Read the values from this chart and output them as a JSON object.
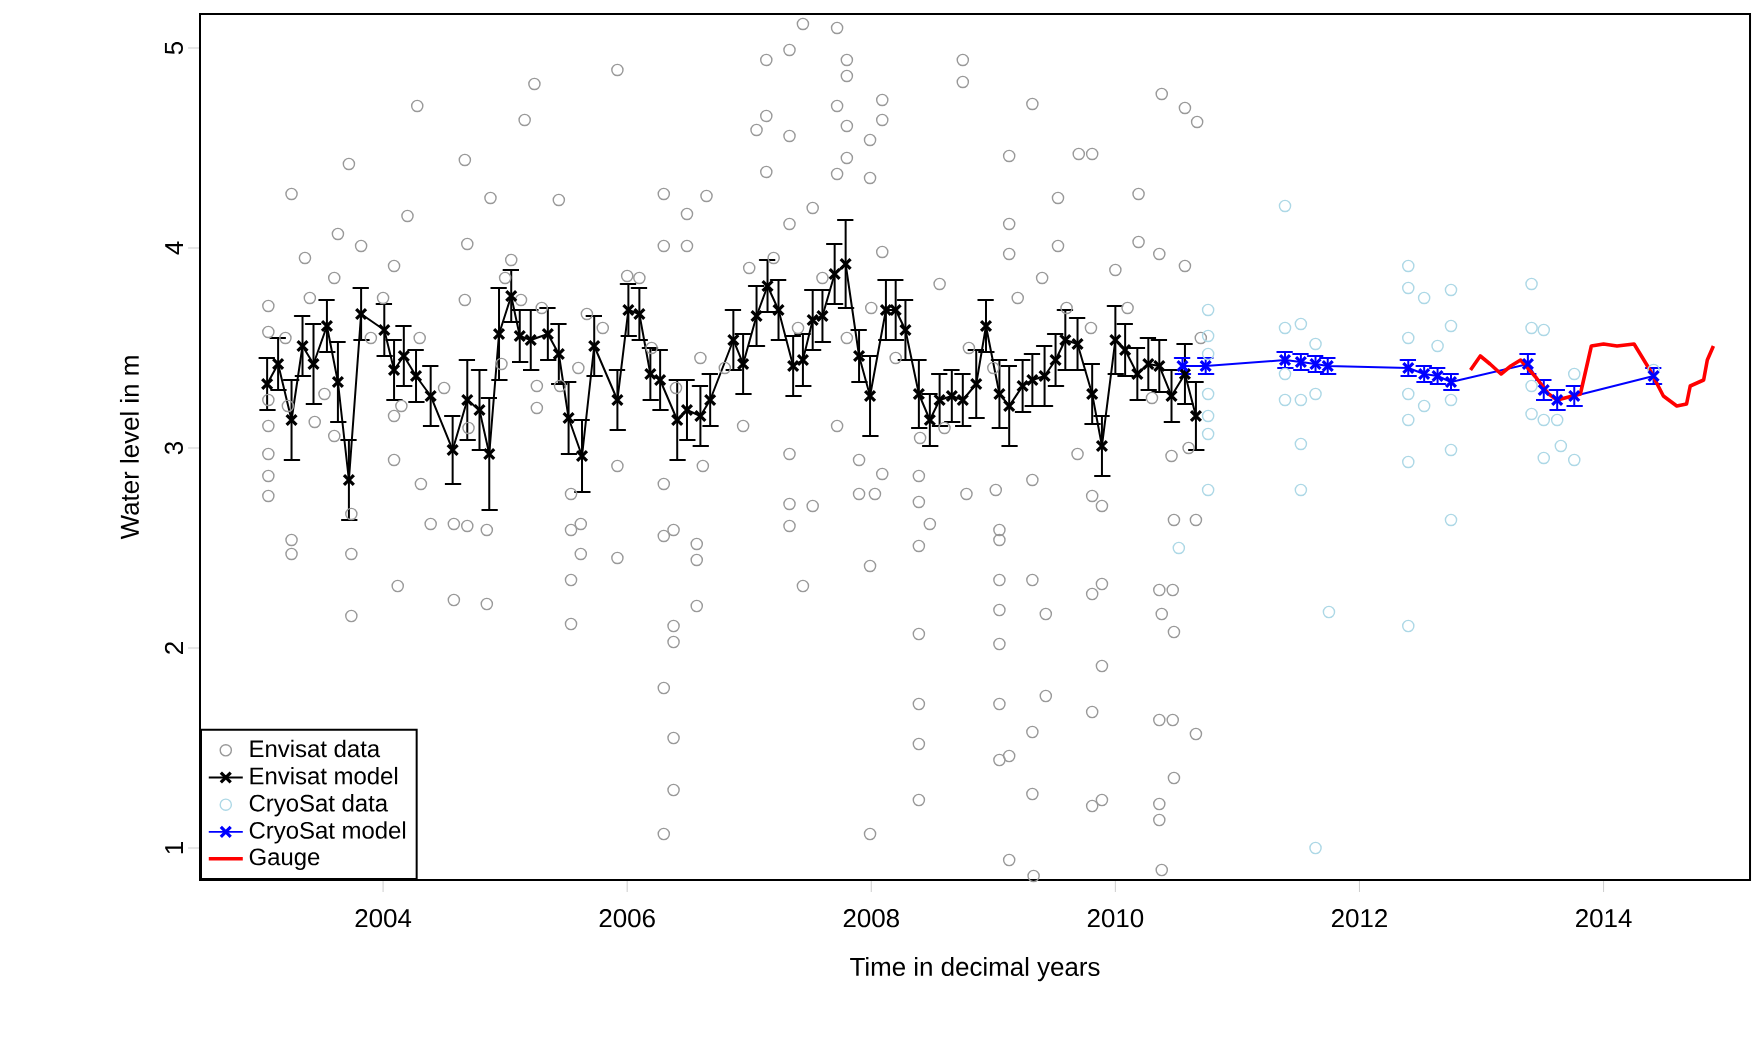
{
  "chart_data": {
    "type": "line",
    "xlabel": "Time in decimal years",
    "ylabel": "Water level in m",
    "xlim": [
      2002.5,
      2015.2
    ],
    "ylim": [
      0.84,
      5.17
    ],
    "xticks": [
      2004,
      2006,
      2008,
      2010,
      2012,
      2014
    ],
    "yticks": [
      1,
      2,
      3,
      4,
      5
    ],
    "legend": "bottom left",
    "series": [
      {
        "type": "scatter",
        "name": "Envisat data",
        "color": "#999999",
        "marker": "circle",
        "x": [
          2005.24,
          2005.16,
          2004.28,
          2003.72,
          2004.67,
          2003.25,
          2004.88,
          2005.44,
          2004.2,
          2003.63,
          2003.36,
          2003.82,
          2004.09,
          2004.69,
          2005.05,
          2003.06,
          2003.06,
          2003.06,
          2003.06,
          2003.06,
          2003.06,
          2003.06,
          2003.22,
          2003.25,
          2003.25,
          2003.44,
          2003.52,
          2003.6,
          2003.74,
          2003.74,
          2003.74,
          2004.09,
          2004.12,
          2004.09,
          2004.31,
          2004.39,
          2004.58,
          2004.58,
          2004.69,
          2004.85,
          2004.85,
          2005.26,
          2005.26,
          2005.45,
          2005.54,
          2005.54,
          2005.54,
          2005.62,
          2005.54,
          2004.67,
          2005.13,
          2005.67,
          2004.15,
          2004.97,
          2005.92,
          2007.14,
          2007.33,
          2007.44,
          2007.72,
          2007.8,
          2007.8,
          2007.14,
          2007.06,
          2007.33,
          2007.72,
          2007.8,
          2008.09,
          2008.09,
          2007.99,
          2007.14,
          2007.72,
          2007.99,
          2007.8,
          2008.75,
          2008.75,
          2006.3,
          2006.65,
          2006.49,
          2006.3,
          2006.49,
          2007.33,
          2007.52,
          2008.09,
          2008.56,
          2006.0,
          2005.62,
          2005.92,
          2005.92,
          2006.3,
          2006.3,
          2006.38,
          2006.57,
          2006.57,
          2006.57,
          2006.38,
          2006.38,
          2006.3,
          2006.38,
          2006.38,
          2006.3,
          2006.62,
          2006.95,
          2007.33,
          2007.33,
          2007.33,
          2007.52,
          2007.44,
          2007.72,
          2007.9,
          2007.9,
          2008.03,
          2007.99,
          2007.99,
          2008.09,
          2008.39,
          2008.39,
          2008.48,
          2008.39,
          2008.39,
          2008.39,
          2008.39,
          2008.39,
          2008.78,
          2009.32,
          2009.13,
          2009.7,
          2009.81,
          2009.53,
          2010.19,
          2010.38,
          2010.57,
          2010.67,
          2009.13,
          2009.13,
          2009.53,
          2010.19,
          2010.36,
          2010.0,
          2010.57,
          2009.02,
          2009.05,
          2009.05,
          2009.05,
          2009.05,
          2009.05,
          2009.32,
          2009.43,
          2009.05,
          2009.43,
          2009.32,
          2009.05,
          2009.13,
          2009.32,
          2009.13,
          2009.33,
          2009.81,
          2009.89,
          2009.89,
          2009.81,
          2009.81,
          2009.89,
          2010.36,
          2010.38,
          2010.47,
          2010.48,
          2010.36,
          2010.47,
          2010.66,
          2010.48,
          2010.36,
          2010.36,
          2010.38,
          2010.48,
          2010.66,
          2010.46,
          2009.89,
          2009.81,
          2009.32,
          2009.69,
          2003.2,
          2003.4,
          2003.6,
          2003.9,
          2004.0,
          2004.3,
          2004.5,
          2004.7,
          2005.0,
          2005.3,
          2005.6,
          2005.8,
          2006.1,
          2006.2,
          2006.4,
          2006.6,
          2006.8,
          2007.0,
          2007.2,
          2007.4,
          2007.6,
          2007.8,
          2008.0,
          2008.2,
          2008.4,
          2008.6,
          2008.8,
          2009.0,
          2009.2,
          2009.4,
          2009.6,
          2009.8,
          2010.1,
          2010.3,
          2010.6,
          2010.7
        ],
        "values": [
          4.82,
          4.64,
          4.71,
          4.42,
          4.44,
          4.27,
          4.25,
          4.24,
          4.16,
          4.07,
          3.95,
          4.01,
          3.91,
          4.02,
          3.94,
          3.71,
          3.58,
          3.24,
          3.11,
          2.97,
          2.86,
          2.76,
          3.21,
          2.54,
          2.47,
          3.13,
          3.27,
          3.06,
          2.67,
          2.47,
          2.16,
          2.94,
          2.31,
          3.16,
          2.82,
          2.62,
          2.62,
          2.24,
          2.61,
          2.59,
          2.22,
          3.31,
          3.2,
          3.31,
          2.77,
          2.59,
          2.34,
          2.47,
          2.12,
          3.74,
          3.74,
          3.67,
          3.21,
          3.42,
          4.89,
          4.94,
          4.99,
          5.12,
          5.1,
          4.94,
          4.86,
          4.66,
          4.59,
          4.56,
          4.71,
          4.61,
          4.74,
          4.64,
          4.54,
          4.38,
          4.37,
          4.35,
          4.45,
          4.94,
          4.83,
          4.27,
          4.26,
          4.17,
          4.01,
          4.01,
          4.12,
          4.2,
          3.98,
          3.82,
          3.86,
          2.62,
          2.91,
          2.45,
          2.82,
          2.56,
          2.59,
          2.52,
          2.44,
          2.21,
          2.11,
          2.03,
          1.8,
          1.55,
          1.29,
          1.07,
          2.91,
          3.11,
          2.97,
          2.72,
          2.61,
          2.71,
          2.31,
          3.11,
          2.94,
          2.77,
          2.77,
          2.41,
          1.07,
          2.87,
          2.86,
          2.73,
          2.62,
          2.51,
          2.07,
          1.72,
          1.52,
          1.24,
          2.77,
          4.72,
          4.46,
          4.47,
          4.47,
          4.25,
          4.27,
          4.77,
          4.7,
          4.63,
          4.12,
          3.97,
          4.01,
          4.03,
          3.97,
          3.89,
          3.91,
          2.79,
          2.59,
          2.54,
          2.34,
          2.19,
          2.02,
          2.34,
          2.17,
          1.72,
          1.76,
          1.58,
          1.44,
          1.46,
          1.27,
          0.94,
          0.86,
          2.27,
          2.32,
          1.91,
          1.68,
          1.21,
          1.24,
          2.29,
          2.17,
          2.29,
          2.08,
          1.64,
          1.64,
          1.57,
          1.35,
          1.22,
          1.14,
          0.89,
          2.64,
          2.64,
          2.96,
          2.71,
          2.76,
          2.84,
          2.97,
          3.55,
          3.75,
          3.85,
          3.55,
          3.75,
          3.55,
          3.3,
          3.1,
          3.85,
          3.7,
          3.4,
          3.6,
          3.85,
          3.5,
          3.3,
          3.45,
          3.4,
          3.9,
          3.95,
          3.6,
          3.85,
          3.55,
          3.7,
          3.45,
          3.05,
          3.1,
          3.5,
          3.4,
          3.75,
          3.85,
          3.7,
          3.6,
          3.7,
          3.25,
          3.0,
          3.55
        ]
      },
      {
        "name": "Envisat model",
        "color": "#000000",
        "marker": "cross",
        "x": [
          2003.05,
          2003.14,
          2003.25,
          2003.34,
          2003.43,
          2003.54,
          2003.63,
          2003.72,
          2003.82,
          2004.01,
          2004.09,
          2004.17,
          2004.27,
          2004.39,
          2004.57,
          2004.69,
          2004.79,
          2004.87,
          2004.95,
          2005.05,
          2005.12,
          2005.21,
          2005.35,
          2005.44,
          2005.52,
          2005.63,
          2005.73,
          2005.92,
          2006.01,
          2006.1,
          2006.19,
          2006.27,
          2006.41,
          2006.49,
          2006.6,
          2006.68,
          2006.87,
          2006.95,
          2007.06,
          2007.15,
          2007.24,
          2007.36,
          2007.44,
          2007.52,
          2007.6,
          2007.7,
          2007.79,
          2007.9,
          2007.99,
          2008.12,
          2008.2,
          2008.28,
          2008.39,
          2008.48,
          2008.56,
          2008.66,
          2008.75,
          2008.86,
          2008.94,
          2009.05,
          2009.13,
          2009.24,
          2009.32,
          2009.42,
          2009.51,
          2009.59,
          2009.69,
          2009.81,
          2009.89,
          2010.0,
          2010.08,
          2010.18,
          2010.27,
          2010.36,
          2010.46,
          2010.57,
          2010.66
        ],
        "values": [
          3.32,
          3.42,
          3.14,
          3.51,
          3.42,
          3.61,
          3.33,
          2.84,
          3.67,
          3.59,
          3.39,
          3.46,
          3.36,
          3.26,
          2.99,
          3.24,
          3.19,
          2.97,
          3.57,
          3.76,
          3.56,
          3.54,
          3.57,
          3.47,
          3.15,
          2.96,
          3.51,
          3.24,
          3.69,
          3.67,
          3.37,
          3.34,
          3.14,
          3.19,
          3.16,
          3.24,
          3.54,
          3.42,
          3.66,
          3.81,
          3.69,
          3.41,
          3.44,
          3.64,
          3.66,
          3.87,
          3.92,
          3.46,
          3.26,
          3.69,
          3.69,
          3.59,
          3.27,
          3.14,
          3.24,
          3.26,
          3.24,
          3.32,
          3.61,
          3.27,
          3.21,
          3.31,
          3.34,
          3.36,
          3.44,
          3.54,
          3.52,
          3.27,
          3.01,
          3.54,
          3.49,
          3.37,
          3.42,
          3.41,
          3.26,
          3.37,
          3.16
        ],
        "errors": [
          0.13,
          0.13,
          0.2,
          0.15,
          0.2,
          0.13,
          0.2,
          0.2,
          0.13,
          0.13,
          0.15,
          0.15,
          0.13,
          0.15,
          0.17,
          0.2,
          0.2,
          0.28,
          0.23,
          0.13,
          0.13,
          0.15,
          0.13,
          0.15,
          0.18,
          0.18,
          0.15,
          0.15,
          0.13,
          0.13,
          0.13,
          0.15,
          0.2,
          0.15,
          0.15,
          0.13,
          0.15,
          0.15,
          0.15,
          0.13,
          0.15,
          0.15,
          0.13,
          0.15,
          0.13,
          0.15,
          0.22,
          0.13,
          0.2,
          0.15,
          0.15,
          0.15,
          0.17,
          0.13,
          0.13,
          0.13,
          0.13,
          0.17,
          0.13,
          0.17,
          0.2,
          0.13,
          0.13,
          0.15,
          0.13,
          0.15,
          0.13,
          0.15,
          0.15,
          0.17,
          0.13,
          0.13,
          0.13,
          0.13,
          0.13,
          0.15,
          0.17
        ]
      },
      {
        "type": "scatter",
        "name": "CryoSat data",
        "color": "#add8e6",
        "marker": "circle",
        "x": [
          2010.76,
          2010.76,
          2010.76,
          2010.76,
          2010.76,
          2010.76,
          2010.76,
          2010.52,
          2011.39,
          2011.39,
          2011.52,
          2011.39,
          2011.39,
          2011.52,
          2011.52,
          2011.52,
          2011.64,
          2011.64,
          2011.75,
          2011.64,
          2012.4,
          2012.4,
          2012.53,
          2012.75,
          2012.4,
          2012.4,
          2012.4,
          2012.4,
          2012.4,
          2012.64,
          2012.53,
          2012.75,
          2012.75,
          2012.75,
          2012.75,
          2013.41,
          2013.41,
          2013.51,
          2013.41,
          2013.41,
          2013.51,
          2013.51,
          2013.65,
          2013.76,
          2013.76,
          2013.62,
          2014.41
        ],
        "values": [
          3.69,
          3.56,
          3.47,
          3.27,
          3.16,
          3.07,
          2.79,
          2.5,
          4.21,
          3.6,
          3.62,
          3.37,
          3.24,
          3.24,
          3.02,
          2.79,
          3.52,
          3.27,
          2.18,
          1.0,
          3.91,
          3.8,
          3.75,
          3.79,
          3.55,
          3.27,
          3.14,
          2.93,
          2.11,
          3.51,
          3.21,
          3.61,
          3.24,
          2.99,
          2.64,
          3.82,
          3.6,
          3.59,
          3.31,
          3.17,
          3.14,
          2.95,
          3.01,
          2.94,
          3.37,
          3.14,
          3.39
        ]
      },
      {
        "name": "CryoSat model",
        "color": "#0000ff",
        "marker": "cross",
        "x": [
          2010.55,
          2010.74,
          2011.39,
          2011.52,
          2011.64,
          2011.74,
          2012.4,
          2012.53,
          2012.64,
          2012.75,
          2013.38,
          2013.51,
          2013.62,
          2013.76,
          2014.41
        ],
        "values": [
          3.41,
          3.41,
          3.44,
          3.43,
          3.42,
          3.41,
          3.4,
          3.37,
          3.36,
          3.33,
          3.42,
          3.29,
          3.24,
          3.26,
          3.36
        ],
        "errors": [
          0.04,
          0.04,
          0.04,
          0.04,
          0.04,
          0.04,
          0.04,
          0.04,
          0.04,
          0.04,
          0.05,
          0.05,
          0.05,
          0.05,
          0.04
        ]
      },
      {
        "name": "Gauge",
        "color": "#ff0000",
        "marker": "none",
        "x": [
          2012.91,
          2012.99,
          2013.07,
          2013.16,
          2013.24,
          2013.32,
          2013.45,
          2013.55,
          2013.62,
          2013.81,
          2013.9,
          2014.0,
          2014.11,
          2014.25,
          2014.3,
          2014.38,
          2014.49,
          2014.6,
          2014.68,
          2014.71,
          2014.82,
          2014.85,
          2014.9
        ],
        "values": [
          3.39,
          3.46,
          3.42,
          3.37,
          3.41,
          3.44,
          3.35,
          3.27,
          3.24,
          3.27,
          3.51,
          3.52,
          3.51,
          3.52,
          3.47,
          3.39,
          3.26,
          3.21,
          3.22,
          3.31,
          3.34,
          3.44,
          3.51
        ]
      }
    ]
  }
}
